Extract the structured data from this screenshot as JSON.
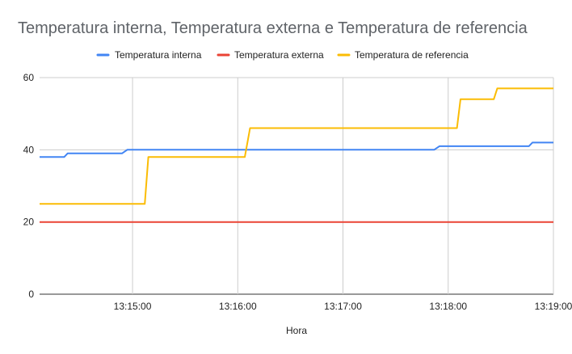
{
  "chart_data": {
    "type": "line",
    "title": "Temperatura interna, Temperatura externa e Temperatura de referencia",
    "xlabel": "Hora",
    "ylabel": "",
    "ylim": [
      0,
      60
    ],
    "yticks": [
      0,
      20,
      40,
      60
    ],
    "xlim": [
      "13:14:07",
      "13:19:00"
    ],
    "xticks": [
      "13:15:00",
      "13:16:00",
      "13:17:00",
      "13:18:00",
      "13:19:00"
    ],
    "grid": true,
    "legend_position": "top",
    "series": [
      {
        "name": "Temperatura interna",
        "color": "#4285f4",
        "points": [
          [
            "13:14:07",
            38
          ],
          [
            "13:14:21",
            38
          ],
          [
            "13:14:23",
            39
          ],
          [
            "13:14:54",
            39
          ],
          [
            "13:14:57",
            40
          ],
          [
            "13:17:52",
            40
          ],
          [
            "13:17:55",
            41
          ],
          [
            "13:18:46",
            41
          ],
          [
            "13:18:48",
            42
          ],
          [
            "13:19:00",
            42
          ]
        ]
      },
      {
        "name": "Temperatura externa",
        "color": "#ea4335",
        "points": [
          [
            "13:14:07",
            20
          ],
          [
            "13:19:00",
            20
          ]
        ]
      },
      {
        "name": "Temperatura de referencia",
        "color": "#fbbc04",
        "points": [
          [
            "13:14:07",
            25
          ],
          [
            "13:15:07",
            25
          ],
          [
            "13:15:09",
            38
          ],
          [
            "13:16:04",
            38
          ],
          [
            "13:16:07",
            46
          ],
          [
            "13:18:05",
            46
          ],
          [
            "13:18:07",
            54
          ],
          [
            "13:18:26",
            54
          ],
          [
            "13:18:28",
            57
          ],
          [
            "13:19:00",
            57
          ]
        ]
      }
    ]
  }
}
